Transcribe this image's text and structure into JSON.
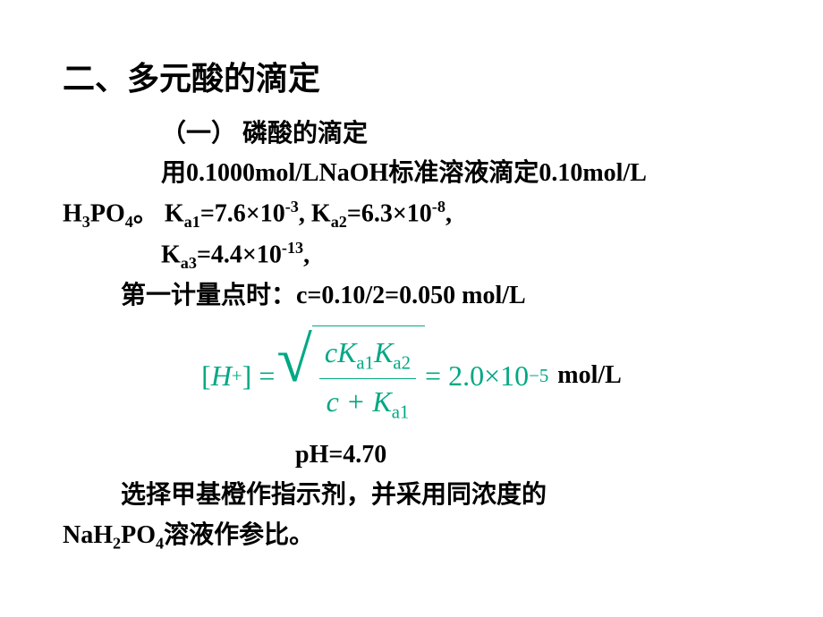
{
  "heading": "二、多元酸的滴定",
  "sub_heading": "（一）  磷酸的滴定",
  "line1_a": "用0.1000mol/LNaOH标准溶液滴定0.10mol/L",
  "line1_b_pre": "H",
  "line1_b_sub": "3",
  "line1_b_mid": "PO",
  "line1_b_sub2": "4",
  "line1_b_post": "。 K",
  "line1_k1sub": "a1",
  "line1_k1": "=7.6×10",
  "line1_k1sup": "-3",
  "line1_sep": ", K",
  "line1_k2sub": "a2",
  "line1_k2": "=6.3×10",
  "line1_k2sup": "-8",
  "line1_end": ",",
  "line2_pre": "K",
  "line2_sub": "a3",
  "line2_mid": "=4.4×10",
  "line2_sup": "-13",
  "line2_end": ",",
  "line3": "第一计量点时：c=0.10/2=0.050 mol/L",
  "formula": {
    "lhs_open": "[",
    "lhs_h": "H",
    "lhs_sup": "+",
    "lhs_close": "] = ",
    "num_c": "cK",
    "num_s1": "a1",
    "num_k": "K",
    "num_s2": "a2",
    "den_c": "c + K",
    "den_s": "a1",
    "eq": " = 2.0×10",
    "res_sup": "−5",
    "unit": "mol/L",
    "color": "#00a884"
  },
  "ph": "pH=4.70",
  "line4_a": "选择甲基橙作指示剂，并采用同浓度的",
  "line4_b_pre": "NaH",
  "line4_b_sub": "2",
  "line4_b_mid": "PO",
  "line4_b_sub2": "4",
  "line4_b_post": "溶液作参比。"
}
